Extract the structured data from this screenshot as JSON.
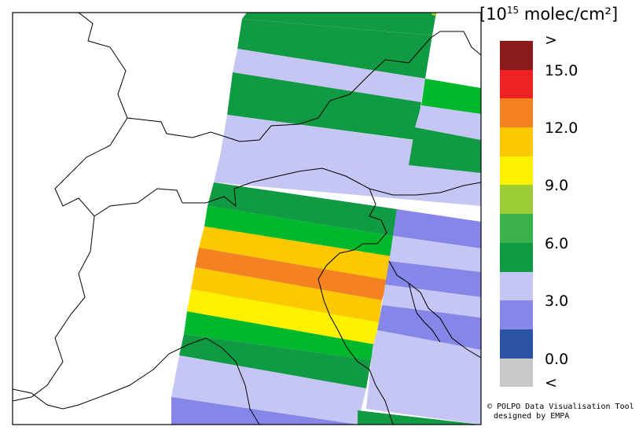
{
  "legend": {
    "unit_label": "10¹⁵ molec/cm²",
    "unit_prefix": "[10",
    "unit_exp": "15",
    "unit_suffix": " molec/cm²]",
    "ticks": [
      ">",
      "15.0",
      "12.0",
      "9.0",
      "6.0",
      "3.0",
      "0.0",
      "<"
    ],
    "colors": [
      "#8b1a1a",
      "#ee2222",
      "#f58220",
      "#fcc800",
      "#fcf200",
      "#9ccc36",
      "#3bb14a",
      "#119a44",
      "#c6c6f5",
      "#8686e8",
      "#2a53a6",
      "#c8c8c8"
    ]
  },
  "credit": {
    "line1": "© POLPO Data Visualisation Tool",
    "line2": "designed by EMPA"
  }
}
